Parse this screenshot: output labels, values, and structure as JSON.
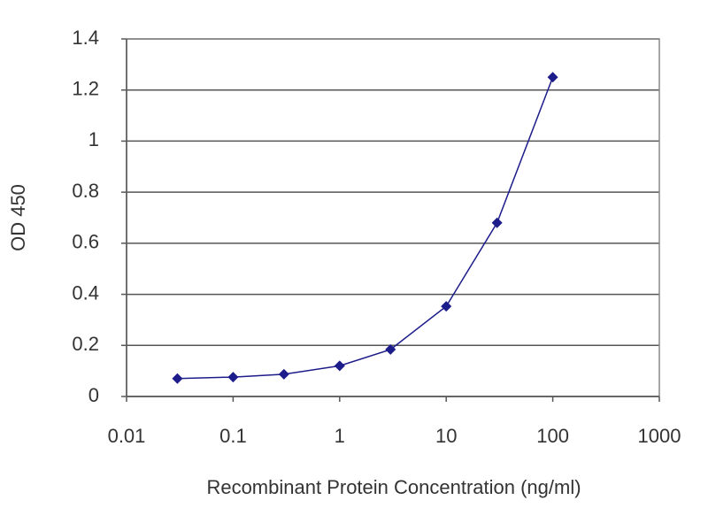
{
  "chart_data": {
    "type": "line",
    "x_label": "Recombinant Protein Concentration (ng/ml)",
    "y_label": "OD 450",
    "xscale": "log",
    "x": [
      0.03,
      0.1,
      0.3,
      1,
      3,
      10,
      30,
      100
    ],
    "series": [
      {
        "color": "#1c1c8a",
        "values": [
          0.07,
          0.076,
          0.087,
          0.12,
          0.184,
          0.353,
          0.68,
          1.25
        ]
      }
    ],
    "xlim": [
      0.01,
      1000
    ],
    "xticks": [
      0.01,
      0.1,
      1,
      10,
      100,
      1000
    ],
    "ylim": [
      0,
      1.4
    ],
    "yticks": [
      0,
      0.2,
      0.4,
      0.6,
      0.8,
      1,
      1.2,
      1.4
    ],
    "grid": true
  }
}
